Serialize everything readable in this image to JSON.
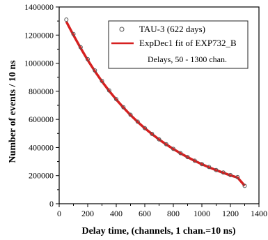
{
  "chart_data": {
    "type": "scatter",
    "xlabel": "Delay time, (channels, 1 chan.=10 ns)",
    "ylabel": "Number of events / 10 ns",
    "xlim": [
      0,
      1400
    ],
    "ylim": [
      0,
      1400000
    ],
    "x_ticks": [
      0,
      200,
      400,
      600,
      800,
      1000,
      1200,
      1400
    ],
    "y_ticks": [
      0,
      200000,
      400000,
      600000,
      800000,
      1000000,
      1200000,
      1400000
    ],
    "grid": false,
    "legend": {
      "placement": "top-right",
      "entries": [
        {
          "label": "TAU-3 (622 days)",
          "marker": "open-circle",
          "color": "#555555"
        },
        {
          "label": "ExpDec1 fit of EXP732_B",
          "marker": "line",
          "color": "#d62020"
        }
      ],
      "note": "Delays, 50 - 1300 chan."
    },
    "series": [
      {
        "name": "TAU-3 (622 days)",
        "style": "open-circle",
        "color": "#555555",
        "x": [
          50,
          100,
          150,
          200,
          250,
          300,
          350,
          400,
          450,
          500,
          550,
          600,
          650,
          700,
          750,
          800,
          850,
          900,
          950,
          1000,
          1050,
          1100,
          1150,
          1200,
          1250,
          1300
        ],
        "y": [
          1310000,
          1208000,
          1114000,
          1028000,
          948000,
          874000,
          806000,
          744000,
          686000,
          633000,
          584000,
          538000,
          497000,
          458000,
          423000,
          390000,
          360000,
          332000,
          306000,
          282000,
          261000,
          240000,
          222000,
          204000,
          189000,
          127000
        ]
      },
      {
        "name": "ExpDec1 fit of EXP732_B",
        "style": "line",
        "color": "#d62020",
        "x": [
          50,
          100,
          150,
          200,
          250,
          300,
          350,
          400,
          450,
          500,
          550,
          600,
          650,
          700,
          750,
          800,
          850,
          900,
          950,
          1000,
          1050,
          1100,
          1150,
          1200,
          1250,
          1300
        ],
        "y": [
          1295000,
          1200000,
          1108000,
          1022000,
          943000,
          870000,
          803000,
          741000,
          684000,
          631000,
          582000,
          537000,
          496000,
          457000,
          422000,
          389000,
          359000,
          331000,
          305000,
          281000,
          259000,
          239000,
          220000,
          202000,
          186000,
          128000
        ]
      }
    ]
  }
}
